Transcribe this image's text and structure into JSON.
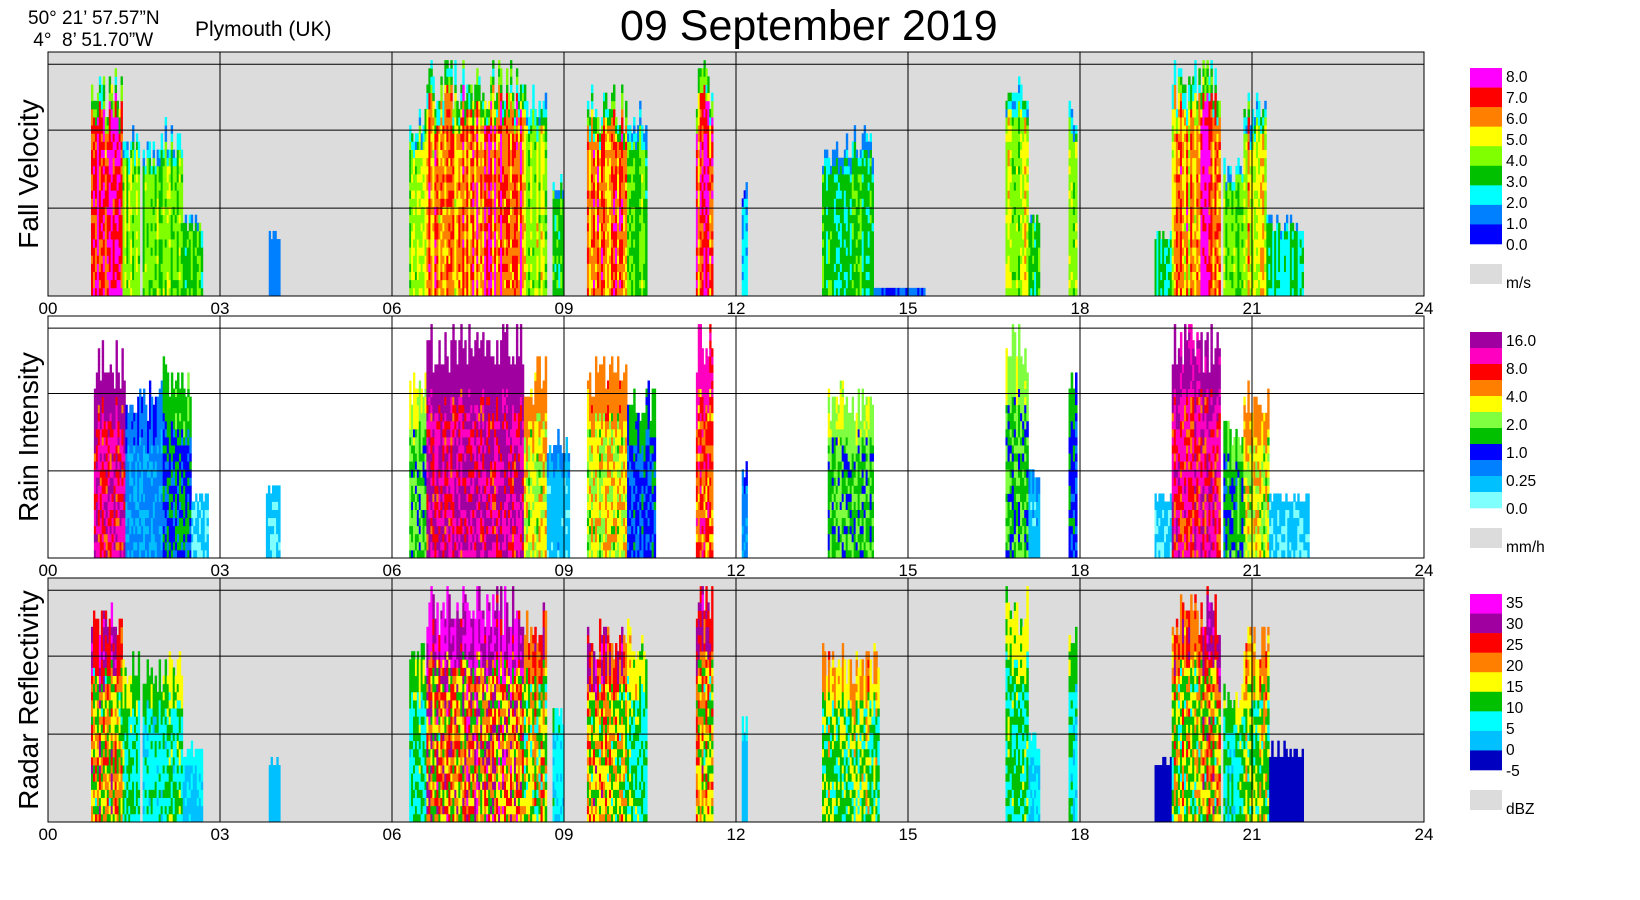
{
  "header": {
    "lat": "50° 21’ 57.57”N",
    "lon": " 4°  8’ 51.70”W",
    "city": "Plymouth (UK)",
    "title": "09 September  2019"
  },
  "colors": {
    "background_panel": "#dcdcdc",
    "grid": "#000000"
  },
  "chart_data": [
    {
      "type": "heatmap",
      "title": "",
      "ylabel": "Fall Velocity",
      "xlabel": "",
      "x_ticks": [
        "00",
        "03",
        "06",
        "09",
        "12",
        "15",
        "18",
        "21",
        "24"
      ],
      "xlim": [
        0,
        24
      ],
      "grid": true,
      "legend_position": "right",
      "legend_unit": "m/s",
      "legend_labels": [
        "8.0",
        "7.0",
        "6.0",
        "5.0",
        "4.0",
        "3.0",
        "2.0",
        "1.0",
        "0.0"
      ],
      "legend_colors": [
        "#ff00ff",
        "#ff0000",
        "#ff8000",
        "#ffff00",
        "#80ff00",
        "#00c000",
        "#00ffff",
        "#0080ff",
        "#0000ff"
      ],
      "missing_color": "#dcdcdc",
      "panel_background": "#dcdcdc",
      "events": [
        {
          "start": 0.75,
          "end": 1.3,
          "top": 0.95,
          "peak": 7.5
        },
        {
          "start": 1.3,
          "end": 1.6,
          "top": 0.75,
          "peak": 4.5
        },
        {
          "start": 1.65,
          "end": 2.0,
          "top": 0.7,
          "peak": 4.2
        },
        {
          "start": 2.0,
          "end": 2.35,
          "top": 0.75,
          "peak": 4.5
        },
        {
          "start": 2.35,
          "end": 2.7,
          "top": 0.35,
          "peak": 3.5
        },
        {
          "start": 3.85,
          "end": 4.05,
          "top": 0.32,
          "peak": 1.5
        },
        {
          "start": 6.3,
          "end": 6.6,
          "top": 0.8,
          "peak": 4.5
        },
        {
          "start": 6.6,
          "end": 7.4,
          "top": 1.0,
          "peak": 6.5
        },
        {
          "start": 7.4,
          "end": 8.3,
          "top": 1.0,
          "peak": 7.0
        },
        {
          "start": 8.3,
          "end": 8.7,
          "top": 0.9,
          "peak": 5.0
        },
        {
          "start": 8.8,
          "end": 9.0,
          "top": 0.55,
          "peak": 3.5
        },
        {
          "start": 9.4,
          "end": 10.1,
          "top": 0.88,
          "peak": 6.5
        },
        {
          "start": 10.1,
          "end": 10.45,
          "top": 0.85,
          "peak": 4.0
        },
        {
          "start": 11.3,
          "end": 11.6,
          "top": 1.0,
          "peak": 7.0
        },
        {
          "start": 12.1,
          "end": 12.2,
          "top": 0.5,
          "peak": 2.0
        },
        {
          "start": 13.5,
          "end": 14.4,
          "top": 0.72,
          "peak": 3.5
        },
        {
          "start": 14.4,
          "end": 15.3,
          "top": 0.06,
          "peak": 1.0
        },
        {
          "start": 16.7,
          "end": 17.1,
          "top": 0.98,
          "peak": 5.0
        },
        {
          "start": 17.1,
          "end": 17.3,
          "top": 0.4,
          "peak": 3.5
        },
        {
          "start": 17.8,
          "end": 17.95,
          "top": 0.88,
          "peak": 4.0
        },
        {
          "start": 19.3,
          "end": 19.6,
          "top": 0.3,
          "peak": 3.0
        },
        {
          "start": 19.6,
          "end": 20.1,
          "top": 1.0,
          "peak": 6.0
        },
        {
          "start": 20.1,
          "end": 20.45,
          "top": 0.98,
          "peak": 7.5
        },
        {
          "start": 20.5,
          "end": 20.85,
          "top": 0.6,
          "peak": 4.0
        },
        {
          "start": 20.85,
          "end": 21.25,
          "top": 0.85,
          "peak": 5.5
        },
        {
          "start": 21.25,
          "end": 21.9,
          "top": 0.35,
          "peak": 3.0
        }
      ]
    },
    {
      "type": "heatmap",
      "title": "",
      "ylabel": "Rain Intensity",
      "xlabel": "",
      "x_ticks": [
        "00",
        "03",
        "06",
        "09",
        "12",
        "15",
        "18",
        "21",
        "24"
      ],
      "xlim": [
        0,
        24
      ],
      "grid": true,
      "legend_position": "right",
      "legend_unit": "mm/h",
      "legend_labels": [
        "16.0",
        "8.0",
        "4.0",
        "2.0",
        "1.0",
        "0.25",
        "0.0"
      ],
      "legend_colors": [
        "#a000a0",
        "#ff00c0",
        "#ff0000",
        "#ff8000",
        "#ffff00",
        "#80ff40",
        "#00c000",
        "#0000ff",
        "#0080ff",
        "#00c0ff",
        "#80ffff"
      ],
      "missing_color": "#dcdcdc",
      "panel_background": "#ffffff",
      "events": [
        {
          "start": 0.8,
          "end": 1.35,
          "top": 0.92,
          "peak": 14.0
        },
        {
          "start": 1.35,
          "end": 2.0,
          "top": 0.75,
          "peak": 0.5
        },
        {
          "start": 2.0,
          "end": 2.5,
          "top": 0.85,
          "peak": 1.2
        },
        {
          "start": 2.5,
          "end": 2.8,
          "top": 0.3,
          "peak": 0.2
        },
        {
          "start": 3.8,
          "end": 4.05,
          "top": 0.35,
          "peak": 0.2
        },
        {
          "start": 6.3,
          "end": 6.6,
          "top": 0.8,
          "peak": 2.0
        },
        {
          "start": 6.6,
          "end": 7.4,
          "top": 1.0,
          "peak": 16.0
        },
        {
          "start": 7.4,
          "end": 8.3,
          "top": 1.0,
          "peak": 16.0
        },
        {
          "start": 8.3,
          "end": 8.7,
          "top": 0.85,
          "peak": 4.0
        },
        {
          "start": 8.7,
          "end": 9.1,
          "top": 0.55,
          "peak": 0.3
        },
        {
          "start": 9.4,
          "end": 10.1,
          "top": 0.85,
          "peak": 4.0
        },
        {
          "start": 10.1,
          "end": 10.6,
          "top": 0.75,
          "peak": 1.0
        },
        {
          "start": 11.3,
          "end": 11.6,
          "top": 1.0,
          "peak": 8.0
        },
        {
          "start": 12.1,
          "end": 12.2,
          "top": 0.45,
          "peak": 0.5
        },
        {
          "start": 13.6,
          "end": 14.4,
          "top": 0.75,
          "peak": 2.0
        },
        {
          "start": 16.7,
          "end": 17.1,
          "top": 0.98,
          "peak": 2.0
        },
        {
          "start": 17.1,
          "end": 17.3,
          "top": 0.4,
          "peak": 0.3
        },
        {
          "start": 17.8,
          "end": 17.95,
          "top": 0.85,
          "peak": 1.0
        },
        {
          "start": 19.3,
          "end": 19.6,
          "top": 0.3,
          "peak": 0.25
        },
        {
          "start": 19.6,
          "end": 20.1,
          "top": 1.0,
          "peak": 12.0
        },
        {
          "start": 20.1,
          "end": 20.45,
          "top": 0.98,
          "peak": 12.0
        },
        {
          "start": 20.5,
          "end": 20.85,
          "top": 0.6,
          "peak": 1.5
        },
        {
          "start": 20.85,
          "end": 21.3,
          "top": 0.75,
          "peak": 4.0
        },
        {
          "start": 21.3,
          "end": 22.0,
          "top": 0.3,
          "peak": 0.2
        }
      ]
    },
    {
      "type": "heatmap",
      "title": "",
      "ylabel": "Radar Reflectivity",
      "xlabel": "",
      "x_ticks": [
        "00",
        "03",
        "06",
        "09",
        "12",
        "15",
        "18",
        "21",
        "24"
      ],
      "xlim": [
        0,
        24
      ],
      "grid": true,
      "legend_position": "right",
      "legend_unit": "dBZ",
      "legend_labels": [
        "35",
        "30",
        "25",
        "20",
        "15",
        "10",
        "5",
        "0",
        "-5"
      ],
      "legend_colors": [
        "#ff00ff",
        "#a000a0",
        "#ff0000",
        "#ff8000",
        "#ffff00",
        "#00c000",
        "#00ffff",
        "#00c0ff",
        "#0000c0"
      ],
      "missing_color": "#dcdcdc",
      "panel_background": "#dcdcdc",
      "events": [
        {
          "start": 0.75,
          "end": 1.3,
          "top": 0.95,
          "peak": 27
        },
        {
          "start": 1.3,
          "end": 1.6,
          "top": 0.75,
          "peak": 12
        },
        {
          "start": 1.65,
          "end": 2.0,
          "top": 0.7,
          "peak": 11
        },
        {
          "start": 2.0,
          "end": 2.35,
          "top": 0.75,
          "peak": 13
        },
        {
          "start": 2.35,
          "end": 2.7,
          "top": 0.35,
          "peak": 5
        },
        {
          "start": 3.85,
          "end": 4.05,
          "top": 0.3,
          "peak": 2
        },
        {
          "start": 6.3,
          "end": 6.6,
          "top": 0.8,
          "peak": 12
        },
        {
          "start": 6.6,
          "end": 7.4,
          "top": 1.0,
          "peak": 30
        },
        {
          "start": 7.4,
          "end": 8.3,
          "top": 1.0,
          "peak": 32
        },
        {
          "start": 8.3,
          "end": 8.7,
          "top": 0.95,
          "peak": 22
        },
        {
          "start": 8.8,
          "end": 9.0,
          "top": 0.5,
          "peak": 8
        },
        {
          "start": 9.4,
          "end": 10.1,
          "top": 0.85,
          "peak": 25
        },
        {
          "start": 10.1,
          "end": 10.45,
          "top": 0.85,
          "peak": 15
        },
        {
          "start": 11.3,
          "end": 11.6,
          "top": 1.0,
          "peak": 24
        },
        {
          "start": 12.1,
          "end": 12.2,
          "top": 0.45,
          "peak": 4
        },
        {
          "start": 13.5,
          "end": 14.5,
          "top": 0.75,
          "peak": 17
        },
        {
          "start": 16.7,
          "end": 17.1,
          "top": 0.98,
          "peak": 14
        },
        {
          "start": 17.1,
          "end": 17.3,
          "top": 0.4,
          "peak": 6
        },
        {
          "start": 17.8,
          "end": 17.95,
          "top": 0.85,
          "peak": 11
        },
        {
          "start": 19.3,
          "end": 19.6,
          "top": 0.3,
          "peak": -3
        },
        {
          "start": 19.6,
          "end": 20.1,
          "top": 1.0,
          "peak": 21
        },
        {
          "start": 20.1,
          "end": 20.45,
          "top": 0.98,
          "peak": 25
        },
        {
          "start": 20.5,
          "end": 20.85,
          "top": 0.6,
          "peak": 12
        },
        {
          "start": 20.85,
          "end": 21.3,
          "top": 0.85,
          "peak": 19
        },
        {
          "start": 21.3,
          "end": 21.9,
          "top": 0.35,
          "peak": -2
        }
      ]
    }
  ]
}
